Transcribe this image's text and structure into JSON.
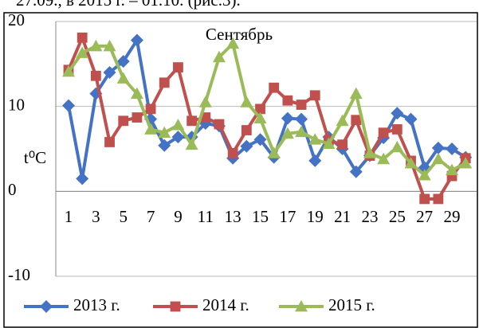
{
  "caption": "27.09., в 2015 г. – 01.10. (рис.3).",
  "chart_data": {
    "type": "line",
    "annotations": [
      "Сентябрь"
    ],
    "y_label": "t⁰C",
    "categories": [
      "1",
      null,
      "3",
      null,
      "5",
      null,
      "7",
      null,
      "9",
      null,
      "11",
      null,
      "13",
      null,
      "15",
      null,
      "17",
      null,
      "19",
      null,
      "21",
      null,
      "23",
      null,
      "25",
      null,
      "27",
      null,
      "29",
      null
    ],
    "series": [
      {
        "name": "2013 г.",
        "color": "#4472c4",
        "marker": "diamond",
        "values": [
          10.1,
          1.5,
          11.5,
          14,
          15.3,
          17.8,
          8.5,
          5.4,
          6.4,
          6.4,
          8,
          7.7,
          3.9,
          5.3,
          6.1,
          4,
          8.6,
          8.5,
          3.6,
          6.4,
          5,
          2.3,
          4.2,
          6.3,
          9.2,
          8.5,
          2.8,
          5.1,
          5,
          4
        ]
      },
      {
        "name": "2014 г.",
        "color": "#c0504d",
        "marker": "square",
        "values": [
          14.3,
          18.1,
          13.6,
          5.8,
          8.3,
          8.7,
          9.7,
          12.8,
          14.6,
          8.3,
          8.7,
          7.9,
          4.5,
          7.2,
          9.7,
          12.2,
          10.7,
          10.2,
          11.3,
          6,
          5.5,
          8.4,
          4.2,
          6.9,
          7.3,
          3.6,
          -0.9,
          -0.9,
          1.8,
          3.9
        ]
      },
      {
        "name": "2015 г.",
        "color": "#9bbb59",
        "marker": "triangle",
        "values": [
          14.1,
          16.3,
          17.1,
          17.1,
          13.3,
          11.5,
          7.3,
          6.9,
          7.8,
          5.5,
          10.5,
          15.8,
          17.4,
          10.5,
          8.6,
          4.5,
          6.8,
          7,
          6.1,
          5.6,
          8.3,
          11.5,
          4.5,
          3.8,
          5.2,
          3.3,
          1.9,
          3.8,
          2.5,
          3.3
        ]
      }
    ],
    "ylim": [
      -10,
      20
    ],
    "yticks": [
      -10,
      0,
      10,
      20
    ],
    "grid": true,
    "legend": "bottom"
  }
}
